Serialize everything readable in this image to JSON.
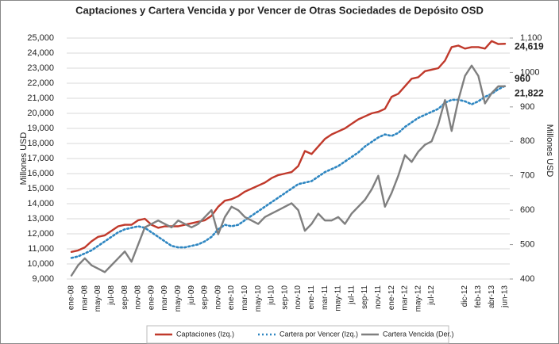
{
  "chart_data": {
    "type": "line",
    "title": "Captaciones y Cartera Vencida y por Vencer de Otras Sociedades de Depósito OSD",
    "ylabel": "Millones USD",
    "y2label": "Millones USD",
    "categories": [
      "ene-08",
      null,
      "mar-08",
      null,
      "may-08",
      null,
      "jul-08",
      null,
      "sep-08",
      null,
      "nov-08",
      null,
      "ene-09",
      null,
      "mar-09",
      null,
      "may-09",
      null,
      "jul-09",
      null,
      "sep-09",
      null,
      "nov-09",
      null,
      "ene-10",
      null,
      "mar-10",
      null,
      "may-10",
      null,
      "jul-10",
      null,
      "sep-10",
      null,
      "nov-10",
      null,
      "ene-11",
      null,
      "mar-11",
      null,
      "may-11",
      null,
      "jul-11",
      null,
      "sep-11",
      null,
      "nov-11",
      null,
      "ene-12",
      null,
      "mar-12",
      null,
      "may-12",
      null,
      "jul-12",
      null,
      null,
      null,
      null,
      "dic-12",
      null,
      "feb-13",
      null,
      "abr-13",
      null,
      "jun-13"
    ],
    "series": [
      {
        "name": "Captaciones (Izq.)",
        "color": "#c0392b",
        "dash": "solid",
        "values": [
          10800,
          10900,
          11100,
          11500,
          11800,
          11900,
          12200,
          12500,
          12600,
          12600,
          12900,
          13000,
          12600,
          12400,
          12500,
          12500,
          12500,
          12600,
          12700,
          12800,
          12900,
          13200,
          13800,
          14200,
          14300,
          14500,
          14800,
          15000,
          15200,
          15400,
          15700,
          15900,
          16000,
          16100,
          16500,
          17500,
          17300,
          17800,
          18300,
          18600,
          18800,
          19000,
          19300,
          19600,
          19800,
          20000,
          20100,
          20300,
          21100,
          21300,
          21800,
          22300,
          22400,
          22800,
          22900,
          23000,
          23500,
          24400,
          24500,
          24300,
          24400,
          24400,
          24300,
          24800,
          24600,
          24619
        ],
        "value_labels": [
          null,
          null,
          null,
          null,
          null,
          null,
          null,
          null,
          null,
          null,
          null,
          null,
          null,
          null,
          null,
          null,
          null,
          null,
          null,
          null,
          null,
          null,
          null,
          null,
          null,
          null,
          null,
          null,
          null,
          null,
          null,
          null,
          null,
          null,
          null,
          null,
          null,
          null,
          null,
          null,
          null,
          null,
          null,
          null,
          null,
          null,
          null,
          null,
          null,
          null,
          null,
          null,
          null,
          null,
          null,
          null,
          null,
          null,
          null,
          null,
          null,
          null,
          null,
          null,
          null,
          "24,619"
        ]
      },
      {
        "name": "Cartera por Vencer (Izq.)",
        "color": "#2e86c1",
        "dash": "dotted",
        "values": [
          10400,
          10500,
          10700,
          10900,
          11200,
          11500,
          11800,
          12100,
          12300,
          12400,
          12500,
          12400,
          12100,
          11800,
          11500,
          11200,
          11100,
          11100,
          11200,
          11300,
          11500,
          11800,
          12300,
          12600,
          12500,
          12600,
          12900,
          13200,
          13500,
          13800,
          14100,
          14400,
          14700,
          15000,
          15300,
          15400,
          15500,
          15800,
          16100,
          16300,
          16500,
          16800,
          17100,
          17400,
          17800,
          18100,
          18400,
          18600,
          18500,
          18700,
          19100,
          19400,
          19700,
          19900,
          20100,
          20300,
          20700,
          20900,
          20900,
          20800,
          20600,
          20800,
          21100,
          21300,
          21600,
          21822
        ],
        "value_labels": [
          null,
          null,
          null,
          null,
          null,
          null,
          null,
          null,
          null,
          null,
          null,
          null,
          null,
          null,
          null,
          null,
          null,
          null,
          null,
          null,
          null,
          null,
          null,
          null,
          null,
          null,
          null,
          null,
          null,
          null,
          null,
          null,
          null,
          null,
          null,
          null,
          null,
          null,
          null,
          null,
          null,
          null,
          null,
          null,
          null,
          null,
          null,
          null,
          null,
          null,
          null,
          null,
          null,
          null,
          null,
          null,
          null,
          null,
          null,
          null,
          null,
          null,
          null,
          null,
          null,
          "21,822"
        ]
      },
      {
        "name": "Cartera Vencida (Der.)",
        "color": "#7f7f7f",
        "dash": "solid",
        "axis": "y2",
        "values": [
          410,
          440,
          460,
          440,
          430,
          420,
          440,
          460,
          480,
          450,
          500,
          550,
          560,
          570,
          560,
          550,
          570,
          560,
          550,
          560,
          580,
          600,
          530,
          580,
          610,
          600,
          580,
          570,
          560,
          580,
          590,
          600,
          610,
          620,
          600,
          540,
          560,
          590,
          570,
          570,
          580,
          560,
          590,
          610,
          630,
          660,
          700,
          610,
          650,
          700,
          760,
          740,
          770,
          790,
          800,
          850,
          920,
          830,
          920,
          990,
          1020,
          990,
          910,
          940,
          960,
          960
        ]
      }
    ],
    "ylim": [
      9000,
      25000
    ],
    "yticks": [
      {
        "value": 9000,
        "label": "9,000"
      },
      {
        "value": 10000,
        "label": "10,000"
      },
      {
        "value": 11000,
        "label": "11,000"
      },
      {
        "value": 12000,
        "label": "12,000"
      },
      {
        "value": 13000,
        "label": "13,000"
      },
      {
        "value": 14000,
        "label": "14,000"
      },
      {
        "value": 15000,
        "label": "15,000"
      },
      {
        "value": 16000,
        "label": "16,000"
      },
      {
        "value": 17000,
        "label": "17,000"
      },
      {
        "value": 18000,
        "label": "18,000"
      },
      {
        "value": 19000,
        "label": "19,000"
      },
      {
        "value": 20000,
        "label": "20,000"
      },
      {
        "value": 21000,
        "label": "21,000"
      },
      {
        "value": 22000,
        "label": "22,000"
      },
      {
        "value": 23000,
        "label": "23,000"
      },
      {
        "value": 24000,
        "label": "24,000"
      },
      {
        "value": 25000,
        "label": "25,000"
      }
    ],
    "y2lim": [
      400,
      1100
    ],
    "y2ticks": [
      400,
      500,
      600,
      700,
      800,
      900,
      1000,
      {
        "value": 1100,
        "label": "1,100"
      }
    ],
    "grid": true,
    "legend": "bottom"
  }
}
